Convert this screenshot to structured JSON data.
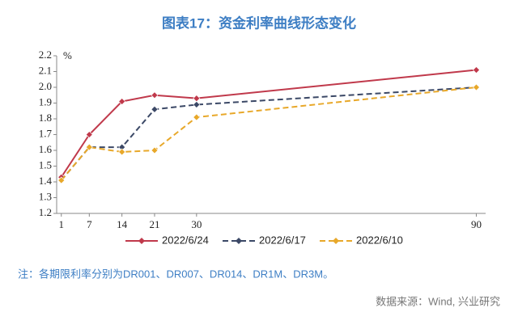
{
  "chart_data": {
    "type": "line",
    "title": "图表17：资金利率曲线形态变化",
    "y_unit": "%",
    "note": "注：各期限利率分别为DR001、DR007、DR014、DR1M、DR3M。",
    "source": "数据来源：Wind, 兴业研究",
    "x": [
      1,
      7,
      14,
      21,
      30,
      90
    ],
    "xlim": [
      0,
      92
    ],
    "xticks": [
      1,
      7,
      14,
      21,
      30,
      90
    ],
    "ylim": [
      1.2,
      2.2
    ],
    "yticks": [
      1.2,
      1.3,
      1.4,
      1.5,
      1.6,
      1.7,
      1.8,
      1.9,
      {
        "value": 2,
        "label": "2.0"
      },
      2.1,
      2.2
    ],
    "grid": false,
    "legend": "bottom",
    "series": [
      {
        "name": "2022/6/24",
        "color": "#c0394b",
        "dash": "solid",
        "values": [
          1.43,
          1.7,
          1.91,
          1.95,
          1.93,
          2.11
        ]
      },
      {
        "name": "2022/6/17",
        "color": "#3b4866",
        "dash": "dashed",
        "values": [
          1.41,
          1.62,
          1.62,
          1.86,
          1.89,
          2.0
        ]
      },
      {
        "name": "2022/6/10",
        "color": "#e8a82a",
        "dash": "dashed",
        "values": [
          1.41,
          1.62,
          1.59,
          1.6,
          1.81,
          2.0
        ]
      }
    ]
  }
}
